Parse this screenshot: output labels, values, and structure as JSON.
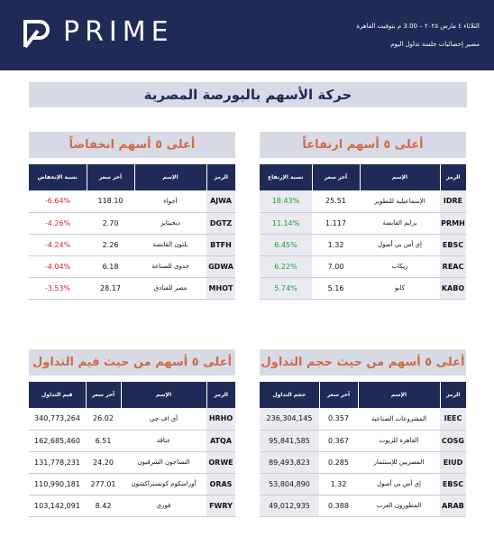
{
  "header": {
    "brand": "PRIME",
    "date_line": "الثلاثاء ٤ مارس ٢٠٢٥ – 3.00 م بتوقيت القاهرة",
    "subtitle": "مصير إحصائيات جلسة تداول اليوم",
    "colors": {
      "navy": "#1f2a56",
      "accent": "#cf6b49",
      "up": "#1a9e3a",
      "down": "#d8262b"
    }
  },
  "main_title": "حركة الأسهم بالبورصة المصرية",
  "gainers": {
    "title": "أعلى ٥ أسهم ارتفاعاً",
    "columns": [
      "الرمز",
      "الإسم",
      "آخر سعر",
      "نسبة الإرتفاع"
    ],
    "rows": [
      {
        "code": "IDRE",
        "name": "الإسماعيلية للتطوير",
        "price": "25.51",
        "change": "18.43%"
      },
      {
        "code": "PRMH",
        "name": "برايم القابضة",
        "price": "1.117",
        "change": "11.14%"
      },
      {
        "code": "EBSC",
        "name": "إي أس بي أصول",
        "price": "1.32",
        "change": "6.45%"
      },
      {
        "code": "REAC",
        "name": "ريكاب",
        "price": "7.00",
        "change": "6.22%"
      },
      {
        "code": "KABO",
        "name": "كابو",
        "price": "5.16",
        "change": "5.74%"
      }
    ]
  },
  "losers": {
    "title": "أعلى ٥ أسهم انخفاضاً",
    "columns": [
      "الرمز",
      "الإسم",
      "آخر سعر",
      "نسبة الإنخفاض"
    ],
    "rows": [
      {
        "code": "AJWA",
        "name": "أجواء",
        "price": "118.10",
        "change": "-6.64%"
      },
      {
        "code": "DGTZ",
        "name": "ديجيتايز",
        "price": "2.70",
        "change": "-4.26%"
      },
      {
        "code": "BTFH",
        "name": "بلتون القابضة",
        "price": "2.26",
        "change": "-4.24%"
      },
      {
        "code": "GDWA",
        "name": "جدوى للصناعة",
        "price": "6.18",
        "change": "-4.04%"
      },
      {
        "code": "MHOT",
        "name": "مصر للفنادق",
        "price": "28.17",
        "change": "-3.53%"
      }
    ]
  },
  "volume": {
    "title": "أعلى ٥ أسهم من حيث حجم التداول",
    "columns": [
      "الرمز",
      "الإسم",
      "آخر سعر",
      "حجم التداول"
    ],
    "rows": [
      {
        "code": "IEEC",
        "name": "المشروعات الصناعية",
        "price": "0.357",
        "value": "236,304,145"
      },
      {
        "code": "COSG",
        "name": "القاهرة للزيوت",
        "price": "0.367",
        "value": "95,841,585"
      },
      {
        "code": "EIUD",
        "name": "المصريين للإستثمار",
        "price": "0.285",
        "value": "89,493,823"
      },
      {
        "code": "EBSC",
        "name": "إي أس بي أصول",
        "price": "1.32",
        "value": "53,804,890"
      },
      {
        "code": "ARAB",
        "name": "المطورون العرب",
        "price": "0.388",
        "value": "49,012,935"
      }
    ]
  },
  "turnover": {
    "title": "أعلى ٥ أسهم من حيث قيم التداول",
    "columns": [
      "الرمز",
      "الإسم",
      "آخر سعر",
      "قيم التداول"
    ],
    "rows": [
      {
        "code": "HRHO",
        "name": "أي اف جي",
        "price": "26.02",
        "value": "340,773,264"
      },
      {
        "code": "ATQA",
        "name": "عتاقة",
        "price": "6.51",
        "value": "162,685,460"
      },
      {
        "code": "ORWE",
        "name": "النساجون الشرقيون",
        "price": "24.20",
        "value": "131,778,231"
      },
      {
        "code": "ORAS",
        "name": "أوراسكوم كونستراكشون",
        "price": "277.01",
        "value": "110,990,181"
      },
      {
        "code": "FWRY",
        "name": "فوري",
        "price": "8.42",
        "value": "103,142,091"
      }
    ]
  }
}
